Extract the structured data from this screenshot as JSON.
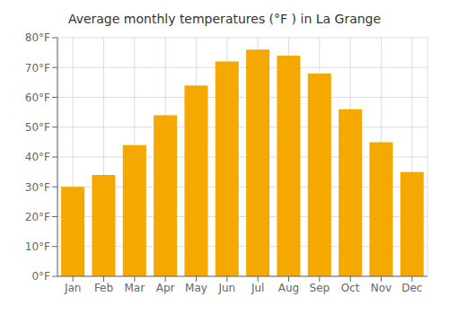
{
  "chart_data": {
    "type": "bar",
    "title": "Average monthly temperatures (°F ) in La Grange",
    "categories": [
      "Jan",
      "Feb",
      "Mar",
      "Apr",
      "May",
      "Jun",
      "Jul",
      "Aug",
      "Sep",
      "Oct",
      "Nov",
      "Dec"
    ],
    "values": [
      30,
      34,
      44,
      54,
      64,
      72,
      76,
      74,
      68,
      56,
      45,
      35
    ],
    "color": "#F5A800",
    "ylim": [
      0,
      80
    ],
    "yticks": [
      {
        "value": 0,
        "label": "0°F"
      },
      {
        "value": 10,
        "label": "10°F"
      },
      {
        "value": 20,
        "label": "20°F"
      },
      {
        "value": 30,
        "label": "30°F"
      },
      {
        "value": 40,
        "label": "40°F"
      },
      {
        "value": 50,
        "label": "50°F"
      },
      {
        "value": 60,
        "label": "60°F"
      },
      {
        "value": 70,
        "label": "70°F"
      },
      {
        "value": 80,
        "label": "80°F"
      }
    ],
    "grid": true
  }
}
